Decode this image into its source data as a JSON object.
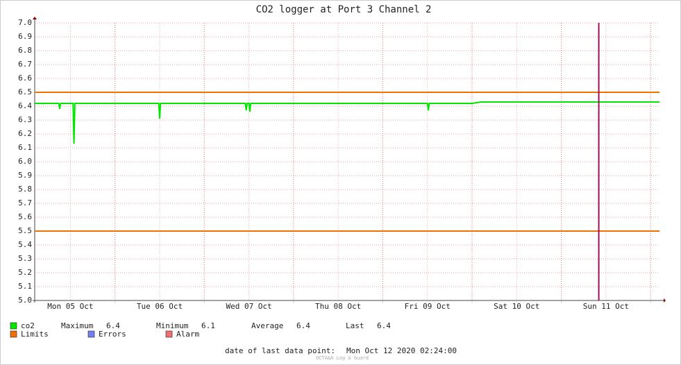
{
  "chart_data": {
    "type": "line",
    "title": "CO2 logger at Port 3 Channel 2",
    "x": [
      0,
      0.1,
      0.2,
      0.27,
      0.28,
      0.29,
      0.3,
      0.4,
      0.43,
      0.44,
      0.45,
      0.5,
      0.6,
      0.7,
      0.8,
      0.9,
      1.0,
      1.1,
      1.2,
      1.3,
      1.39,
      1.4,
      1.41,
      1.5,
      1.6,
      1.7,
      1.8,
      1.9,
      2.0,
      2.1,
      2.2,
      2.3,
      2.36,
      2.37,
      2.38,
      2.4,
      2.41,
      2.42,
      2.5,
      2.6,
      2.7,
      2.8,
      2.9,
      3.0,
      3.1,
      3.2,
      3.3,
      3.4,
      3.5,
      3.6,
      3.7,
      3.8,
      3.9,
      4.0,
      4.1,
      4.2,
      4.3,
      4.4,
      4.41,
      4.42,
      4.5,
      4.6,
      4.7,
      4.8,
      4.9,
      5.0,
      5.1,
      5.2,
      5.3,
      5.4,
      5.5,
      5.6,
      5.7,
      5.8,
      5.9,
      6.0,
      6.1,
      6.2,
      6.3,
      6.4,
      6.5,
      6.6,
      6.7,
      6.8,
      6.9,
      7.0
    ],
    "series": [
      {
        "name": "co2",
        "color": "#00e800",
        "values": [
          6.42,
          6.42,
          6.42,
          6.42,
          6.38,
          6.42,
          6.42,
          6.42,
          6.42,
          6.13,
          6.42,
          6.42,
          6.42,
          6.42,
          6.42,
          6.42,
          6.42,
          6.42,
          6.42,
          6.42,
          6.42,
          6.31,
          6.42,
          6.42,
          6.42,
          6.42,
          6.42,
          6.42,
          6.42,
          6.42,
          6.42,
          6.42,
          6.42,
          6.37,
          6.42,
          6.42,
          6.36,
          6.42,
          6.42,
          6.42,
          6.42,
          6.42,
          6.42,
          6.42,
          6.42,
          6.42,
          6.42,
          6.42,
          6.42,
          6.42,
          6.42,
          6.42,
          6.42,
          6.42,
          6.42,
          6.42,
          6.42,
          6.42,
          6.37,
          6.42,
          6.42,
          6.42,
          6.42,
          6.42,
          6.42,
          6.43,
          6.43,
          6.43,
          6.43,
          6.43,
          6.43,
          6.43,
          6.43,
          6.43,
          6.43,
          6.43,
          6.43,
          6.43,
          6.43,
          6.43,
          6.43,
          6.43,
          6.43,
          6.43,
          6.43,
          6.43
        ]
      }
    ],
    "stats": [
      {
        "label": "Maximum",
        "value": 6.4
      },
      {
        "label": "Minimum",
        "value": 6.1
      },
      {
        "label": "Average",
        "value": 6.4
      },
      {
        "label": "Last",
        "value": 6.4
      }
    ],
    "limits": {
      "name": "Limits",
      "color": "#f07000",
      "values": [
        6.5,
        5.5
      ]
    },
    "legend_extra": [
      {
        "name": "Errors",
        "color": "#7080f0"
      },
      {
        "name": "Alarm",
        "color": "#f07070"
      }
    ],
    "vrule": {
      "x": 6.32,
      "color": "#a0105a"
    },
    "xlim": [
      0,
      7
    ],
    "xticks": [
      {
        "value": 0.4,
        "label": "Mon 05 Oct"
      },
      {
        "value": 1.4,
        "label": "Tue 06 Oct"
      },
      {
        "value": 2.4,
        "label": "Wed 07 Oct"
      },
      {
        "value": 3.4,
        "label": "Thu 08 Oct"
      },
      {
        "value": 4.4,
        "label": "Fri 09 Oct"
      },
      {
        "value": 5.4,
        "label": "Sat 10 Oct"
      },
      {
        "value": 6.4,
        "label": "Sun 11 Oct"
      }
    ],
    "xgrid_major": [
      0.9,
      1.9,
      2.9,
      3.9,
      4.9,
      5.9,
      6.9
    ],
    "ylim": [
      5,
      7
    ],
    "yticks": [
      {
        "value": 5,
        "label": "5.0"
      },
      5.1,
      5.2,
      5.3,
      5.4,
      5.5,
      5.6,
      5.7,
      5.8,
      5.9,
      {
        "value": 6,
        "label": "6.0"
      },
      6.1,
      6.2,
      6.3,
      6.4,
      6.5,
      6.6,
      6.7,
      6.8,
      6.9,
      {
        "value": 7,
        "label": "7.0"
      }
    ],
    "grid": true,
    "footer_label": "date of last data point:",
    "footer_value": "Mon Oct 12 2020 02:24:00",
    "watermark": "OCTA&A Log & Guard"
  }
}
